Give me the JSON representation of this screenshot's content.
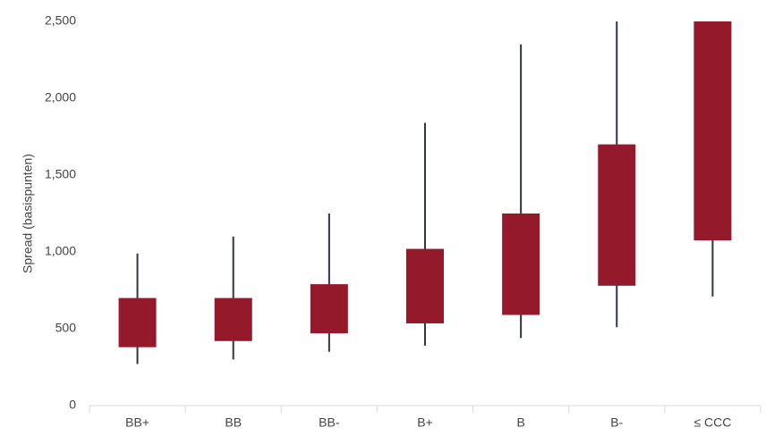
{
  "chart_data": {
    "type": "box",
    "y_label": "Spread (basispunten)",
    "categories": [
      "BB+",
      "BB",
      "BB-",
      "B+",
      "B",
      "B-",
      "≤ CCC"
    ],
    "low": [
      270,
      300,
      350,
      390,
      440,
      510,
      710
    ],
    "q1": [
      380,
      420,
      470,
      535,
      590,
      780,
      1075
    ],
    "q3": [
      700,
      700,
      790,
      1020,
      1250,
      1700,
      2500
    ],
    "high": [
      990,
      1100,
      1250,
      1840,
      2350,
      2500,
      2500
    ],
    "box_color": "#941a2b",
    "whisker_color": "#2f3640",
    "ylim": [
      0,
      2500
    ],
    "yticks": [
      0,
      500,
      {
        "value": 1000,
        "label": "1,000"
      },
      {
        "value": 1500,
        "label": "1,500"
      },
      {
        "value": 2000,
        "label": "2,000"
      },
      {
        "value": 2500,
        "label": "2,500"
      }
    ]
  }
}
